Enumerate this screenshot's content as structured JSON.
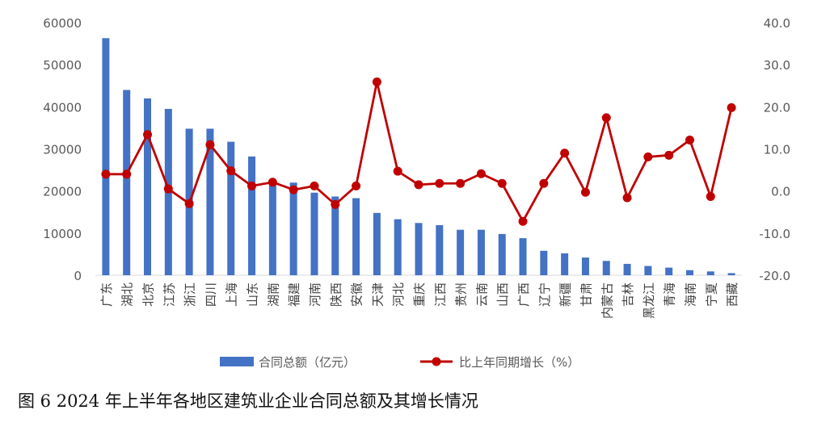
{
  "caption": "图 6 2024 年上半年各地区建筑业企业合同总额及其增长情况",
  "chart_data": {
    "type": "bar+line",
    "categories": [
      "广东",
      "湖北",
      "北京",
      "江苏",
      "浙江",
      "四川",
      "上海",
      "山东",
      "湖南",
      "福建",
      "河南",
      "陕西",
      "安徽",
      "天津",
      "河北",
      "重庆",
      "江西",
      "贵州",
      "云南",
      "山西",
      "广西",
      "辽宁",
      "新疆",
      "甘肃",
      "内蒙古",
      "吉林",
      "黑龙江",
      "青海",
      "海南",
      "宁夏",
      "西藏"
    ],
    "series": [
      {
        "name": "合同总额（亿元）",
        "type": "bar",
        "axis": "left",
        "color": "#4472C4",
        "values": [
          56300,
          44000,
          42000,
          39500,
          34800,
          34800,
          31700,
          28200,
          22400,
          22000,
          19600,
          18700,
          18300,
          14800,
          13300,
          12400,
          11900,
          10800,
          10800,
          9800,
          8800,
          5800,
          5200,
          4200,
          3400,
          2700,
          2200,
          1800,
          1200,
          900,
          500
        ]
      },
      {
        "name": "比上年同期增长（%）",
        "type": "line",
        "axis": "right",
        "color": "#C00000",
        "values": [
          4.0,
          4.0,
          13.4,
          0.5,
          -3.0,
          11.0,
          4.8,
          1.2,
          2.1,
          0.3,
          1.2,
          -3.2,
          1.2,
          25.9,
          4.7,
          1.5,
          1.8,
          1.8,
          4.1,
          1.8,
          -7.2,
          1.8,
          9.0,
          -0.3,
          17.4,
          -1.6,
          8.1,
          8.5,
          12.1,
          -1.3,
          19.8
        ]
      }
    ],
    "left_axis": {
      "min": 0,
      "max": 60000,
      "ticks": [
        "0",
        "10000",
        "20000",
        "30000",
        "40000",
        "50000",
        "60000"
      ]
    },
    "right_axis": {
      "min": -20,
      "max": 40,
      "ticks": [
        "-20.0",
        "-10.0",
        "0.0",
        "10.0",
        "20.0",
        "30.0",
        "40.0"
      ]
    },
    "grid": false,
    "legend_position": "bottom"
  }
}
